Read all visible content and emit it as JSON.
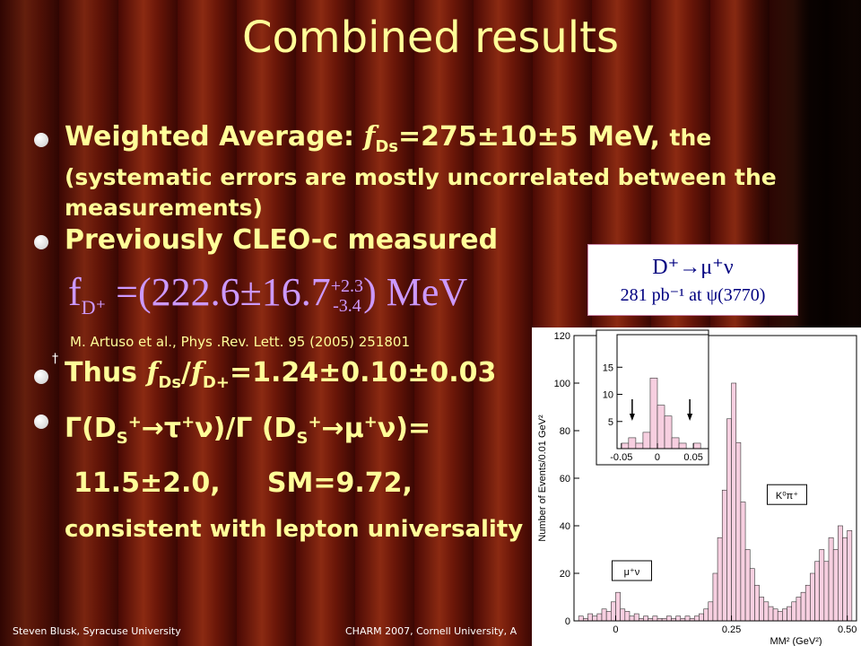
{
  "title": "Combined results",
  "bullets": [
    {
      "parts": [
        "Weighted Average: ",
        "f",
        "Ds",
        "=275±10±5 MeV, ",
        "the",
        "(systematic errors are mostly uncorrelated between the",
        "measurements)"
      ]
    },
    {
      "parts": [
        "Previously CLEO-c measured"
      ]
    },
    {
      "parts": [
        "Thus ",
        "f",
        "Ds",
        "/",
        "f",
        "D+",
        "=1.24±0.10±0.03"
      ]
    },
    {
      "parts": [
        "Γ(D",
        "S",
        "+",
        "→τ",
        "+",
        "ν)/Γ (D",
        "S",
        "+",
        "→μ",
        "+",
        "ν)=",
        "11.5±2.0,     SM=9.72,",
        "consistent with lepton universality"
      ]
    }
  ],
  "formula": {
    "parts": [
      "f",
      "D⁺",
      " =(222.6±16.7",
      "+2.3",
      "-3.4",
      ") MeV"
    ]
  },
  "reference": "M. Artuso et al., Phys .Rev. Lett. 95 (2005) 251801",
  "dagger": "†",
  "decay_box": {
    "line1": "D⁺→μ⁺ν",
    "line2": "281 pb⁻¹ at ψ(3770)"
  },
  "footer": {
    "left": "Steven Blusk, Syracuse University",
    "right": "CHARM 2007, Cornell University, A"
  },
  "chart_data": [
    {
      "type": "histogram",
      "y_label": "Number of Events/0.01 GeV²",
      "x_label": "MM² (GeV²)",
      "bins": [
        -0.08,
        -0.07,
        -0.06,
        -0.05,
        -0.04,
        -0.03,
        -0.02,
        -0.01,
        0,
        0.01,
        0.02,
        0.03,
        0.04,
        0.05,
        0.06,
        0.07,
        0.08,
        0.09,
        0.1,
        0.11,
        0.12,
        0.13,
        0.14,
        0.15,
        0.16,
        0.17,
        0.18,
        0.19,
        0.2,
        0.21,
        0.22,
        0.23,
        0.24,
        0.25,
        0.26,
        0.27,
        0.28,
        0.29,
        0.3,
        0.31,
        0.32,
        0.33,
        0.34,
        0.35,
        0.36,
        0.37,
        0.38,
        0.39,
        0.4,
        0.41,
        0.42,
        0.43,
        0.44,
        0.45,
        0.46,
        0.47,
        0.48,
        0.49,
        0.5,
        0.51
      ],
      "values": [
        2,
        1,
        3,
        2,
        3,
        5,
        4,
        8,
        12,
        5,
        4,
        2,
        3,
        1,
        2,
        1,
        2,
        1,
        1,
        2,
        1,
        2,
        1,
        2,
        1,
        2,
        3,
        5,
        8,
        20,
        35,
        55,
        85,
        100,
        75,
        50,
        30,
        22,
        15,
        10,
        8,
        6,
        5,
        4,
        5,
        6,
        8,
        10,
        12,
        15,
        20,
        25,
        30,
        25,
        35,
        30,
        40,
        35,
        38
      ],
      "color": "#f7cfe0",
      "xlim": [
        -0.09,
        0.52
      ],
      "ylim": [
        0,
        120
      ],
      "xticks": [
        0,
        0.25,
        {
          "value": 0.5,
          "label": "0.50"
        }
      ],
      "yticks": [
        0,
        20,
        40,
        60,
        80,
        100,
        120
      ],
      "annotations": [
        {
          "text": "K⁰π⁺",
          "x": 0.335,
          "y": 52
        },
        {
          "text": "μ⁺ν",
          "x": 0.0,
          "y": 20
        }
      ]
    },
    {
      "type": "histogram",
      "bins": [
        -0.05,
        -0.04,
        -0.03,
        -0.02,
        -0.01,
        0,
        0.01,
        0.02,
        0.03,
        0.04,
        0.05,
        0.06,
        0.07
      ],
      "values": [
        1,
        2,
        1,
        3,
        13,
        8,
        6,
        2,
        1,
        0,
        1,
        0
      ],
      "color": "#f7cfe0",
      "xlim": [
        -0.056,
        0.071
      ],
      "ylim": [
        0,
        21
      ],
      "xticks": [
        -0.05,
        0,
        0.05
      ],
      "yticks": [
        5,
        10,
        15
      ]
    }
  ]
}
